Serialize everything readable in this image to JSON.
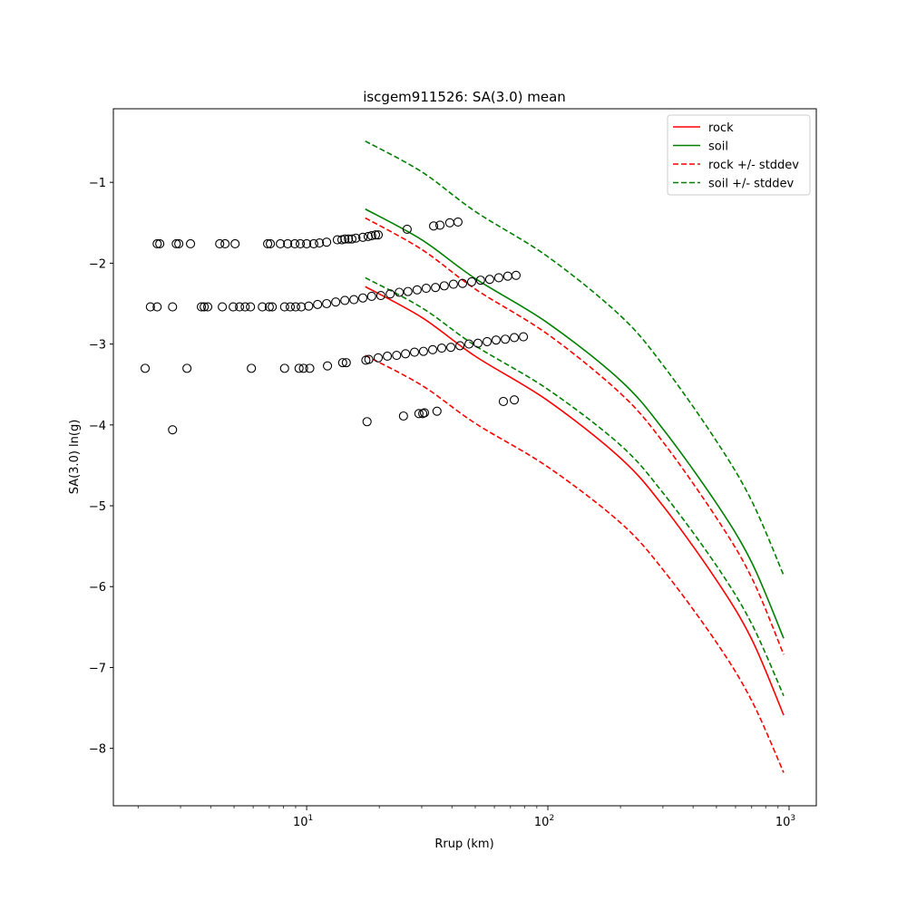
{
  "chart_data": {
    "type": "scatter",
    "title": "iscgem911526: SA(3.0) mean",
    "xlabel": "Rrup (km)",
    "ylabel": "SA(3.0) ln(g)",
    "xscale": "log",
    "xlim": [
      1.58,
      1297
    ],
    "ylim": [
      -8.71,
      -0.09
    ],
    "xticks": [
      {
        "value": 10,
        "label": "10"
      },
      {
        "value": 100,
        "label": "10"
      },
      {
        "value": 1000,
        "label": "10"
      }
    ],
    "xtick_exponents": [
      "1",
      "2",
      "3"
    ],
    "yticks": [
      {
        "value": -1,
        "label": "−1"
      },
      {
        "value": -2,
        "label": "−2"
      },
      {
        "value": -3,
        "label": "−3"
      },
      {
        "value": -4,
        "label": "−4"
      },
      {
        "value": -5,
        "label": "−5"
      },
      {
        "value": -6,
        "label": "−6"
      },
      {
        "value": -7,
        "label": "−7"
      },
      {
        "value": -8,
        "label": "−8"
      }
    ],
    "grid": false,
    "legend_position": "top-right",
    "lines": [
      {
        "name": "rock",
        "color": "#ff0000",
        "dash": false,
        "in_legend": true,
        "x": [
          17.5,
          30,
          50,
          100,
          200,
          300,
          500,
          700,
          950
        ],
        "y": [
          -2.29,
          -2.67,
          -3.15,
          -3.7,
          -4.41,
          -5.0,
          -5.92,
          -6.65,
          -7.59
        ]
      },
      {
        "name": "soil",
        "color": "#008000",
        "dash": false,
        "in_legend": true,
        "x": [
          17.5,
          30,
          50,
          100,
          200,
          300,
          500,
          700,
          950
        ],
        "y": [
          -1.33,
          -1.71,
          -2.19,
          -2.74,
          -3.45,
          -4.05,
          -4.97,
          -5.7,
          -6.64
        ]
      },
      {
        "name": "rock +/- stddev",
        "color": "#ff0000",
        "dash": true,
        "in_legend": true,
        "x": [
          17.5,
          30,
          50,
          100,
          200,
          300,
          500,
          700,
          950
        ],
        "y": [
          -1.44,
          -1.83,
          -2.32,
          -2.88,
          -3.61,
          -4.21,
          -5.15,
          -5.89,
          -6.84
        ]
      },
      {
        "name": "rock +/- stddev",
        "color": "#ff0000",
        "dash": true,
        "in_legend": false,
        "x": [
          17.5,
          30,
          50,
          100,
          200,
          300,
          500,
          700,
          950
        ],
        "y": [
          -3.14,
          -3.51,
          -3.98,
          -4.52,
          -5.21,
          -5.79,
          -6.69,
          -7.41,
          -8.3
        ]
      },
      {
        "name": "soil +/- stddev",
        "color": "#008000",
        "dash": true,
        "in_legend": true,
        "x": [
          17.5,
          30,
          50,
          100,
          200,
          300,
          500,
          700,
          950
        ],
        "y": [
          -0.49,
          -0.87,
          -1.36,
          -1.92,
          -2.65,
          -3.26,
          -4.2,
          -4.94,
          -5.86
        ]
      },
      {
        "name": "soil +/- stddev",
        "color": "#008000",
        "dash": true,
        "in_legend": false,
        "x": [
          17.5,
          30,
          50,
          100,
          200,
          300,
          500,
          700,
          950
        ],
        "y": [
          -2.18,
          -2.55,
          -3.02,
          -3.56,
          -4.25,
          -4.84,
          -5.74,
          -6.46,
          -7.35
        ]
      }
    ],
    "points": [
      [
        2.4,
        -1.76
      ],
      [
        2.46,
        -1.76
      ],
      [
        2.88,
        -1.76
      ],
      [
        2.95,
        -1.76
      ],
      [
        3.3,
        -1.76
      ],
      [
        4.36,
        -1.76
      ],
      [
        4.59,
        -1.76
      ],
      [
        5.05,
        -1.76
      ],
      [
        6.89,
        -1.76
      ],
      [
        7.07,
        -1.76
      ],
      [
        7.78,
        -1.76
      ],
      [
        8.34,
        -1.76
      ],
      [
        8.93,
        -1.76
      ],
      [
        9.41,
        -1.76
      ],
      [
        10.0,
        -1.76
      ],
      [
        10.7,
        -1.76
      ],
      [
        11.3,
        -1.75
      ],
      [
        12.1,
        -1.74
      ],
      [
        13.4,
        -1.71
      ],
      [
        14.0,
        -1.71
      ],
      [
        14.4,
        -1.7
      ],
      [
        14.9,
        -1.7
      ],
      [
        15.4,
        -1.7
      ],
      [
        16.0,
        -1.69
      ],
      [
        17.1,
        -1.68
      ],
      [
        18.0,
        -1.67
      ],
      [
        18.6,
        -1.66
      ],
      [
        19.3,
        -1.65
      ],
      [
        19.8,
        -1.65
      ],
      [
        26.1,
        -1.58
      ],
      [
        33.6,
        -1.54
      ],
      [
        35.7,
        -1.53
      ],
      [
        39.2,
        -1.5
      ],
      [
        42.4,
        -1.49
      ],
      [
        2.25,
        -2.54
      ],
      [
        2.4,
        -2.54
      ],
      [
        2.78,
        -2.54
      ],
      [
        3.66,
        -2.54
      ],
      [
        3.76,
        -2.54
      ],
      [
        3.89,
        -2.54
      ],
      [
        4.47,
        -2.54
      ],
      [
        4.96,
        -2.54
      ],
      [
        5.27,
        -2.54
      ],
      [
        5.56,
        -2.54
      ],
      [
        5.85,
        -2.54
      ],
      [
        6.55,
        -2.54
      ],
      [
        7.0,
        -2.54
      ],
      [
        7.2,
        -2.54
      ],
      [
        8.1,
        -2.54
      ],
      [
        8.55,
        -2.54
      ],
      [
        9.0,
        -2.54
      ],
      [
        9.5,
        -2.54
      ],
      [
        10.2,
        -2.53
      ],
      [
        11.1,
        -2.51
      ],
      [
        12.1,
        -2.5
      ],
      [
        13.2,
        -2.48
      ],
      [
        14.4,
        -2.46
      ],
      [
        15.7,
        -2.45
      ],
      [
        17.1,
        -2.43
      ],
      [
        18.6,
        -2.41
      ],
      [
        20.3,
        -2.4
      ],
      [
        22.2,
        -2.38
      ],
      [
        24.2,
        -2.36
      ],
      [
        26.3,
        -2.35
      ],
      [
        28.7,
        -2.33
      ],
      [
        31.3,
        -2.31
      ],
      [
        34.2,
        -2.3
      ],
      [
        37.2,
        -2.28
      ],
      [
        40.6,
        -2.26
      ],
      [
        44.3,
        -2.25
      ],
      [
        48.3,
        -2.23
      ],
      [
        52.6,
        -2.21
      ],
      [
        57.4,
        -2.2
      ],
      [
        62.6,
        -2.18
      ],
      [
        68.2,
        -2.16
      ],
      [
        73.8,
        -2.15
      ],
      [
        2.14,
        -3.3
      ],
      [
        3.19,
        -3.3
      ],
      [
        5.9,
        -3.3
      ],
      [
        8.1,
        -3.3
      ],
      [
        9.3,
        -3.3
      ],
      [
        9.7,
        -3.3
      ],
      [
        10.3,
        -3.3
      ],
      [
        12.2,
        -3.27
      ],
      [
        14.1,
        -3.23
      ],
      [
        14.6,
        -3.23
      ],
      [
        17.6,
        -3.2
      ],
      [
        18.1,
        -3.19
      ],
      [
        19.8,
        -3.17
      ],
      [
        21.6,
        -3.15
      ],
      [
        23.6,
        -3.14
      ],
      [
        25.7,
        -3.12
      ],
      [
        28.0,
        -3.1
      ],
      [
        30.5,
        -3.09
      ],
      [
        33.3,
        -3.07
      ],
      [
        36.3,
        -3.05
      ],
      [
        39.6,
        -3.04
      ],
      [
        43.2,
        -3.02
      ],
      [
        47.1,
        -3.0
      ],
      [
        51.3,
        -2.99
      ],
      [
        56.0,
        -2.97
      ],
      [
        61.0,
        -2.95
      ],
      [
        66.6,
        -2.94
      ],
      [
        72.6,
        -2.92
      ],
      [
        79.2,
        -2.91
      ],
      [
        2.78,
        -4.06
      ],
      [
        17.8,
        -3.96
      ],
      [
        25.2,
        -3.89
      ],
      [
        29.2,
        -3.86
      ],
      [
        30.3,
        -3.86
      ],
      [
        30.8,
        -3.85
      ],
      [
        34.7,
        -3.83
      ],
      [
        65.4,
        -3.71
      ],
      [
        72.6,
        -3.69
      ]
    ]
  }
}
